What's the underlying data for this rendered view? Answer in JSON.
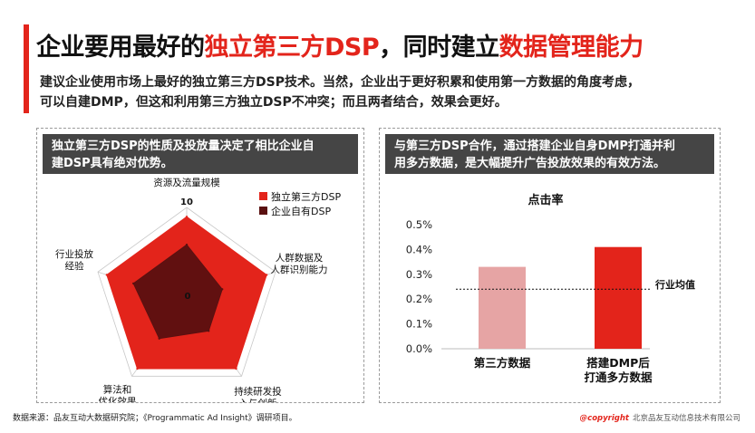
{
  "header": {
    "title_parts": [
      "企业要用最好的",
      "独立第三方DSP",
      "，同时建立",
      "数据管理能力"
    ],
    "subtitle_line1": "建议企业使用市场上最好的独立第三方DSP技术。当然，企业出于更好积累和使用第一方数据的角度考虑，",
    "subtitle_line2": "可以自建DMP，但这和利用第三方独立DSP不冲突；而且两者结合，效果会更好。"
  },
  "left_panel": {
    "heading_line1": "独立第三方DSP的性质及投放量决定了相比企业自",
    "heading_line2": "建DSP具有绝对优势。"
  },
  "right_panel": {
    "heading_line1": "与第三方DSP合作，通过搭建企业自身DMP打通并利",
    "heading_line2": "用多方数据，是大幅提升广告投放效果的有效方法。"
  },
  "chart_data": [
    {
      "type": "radar",
      "axes": [
        {
          "label_lines": [
            "资源及流量规模"
          ]
        },
        {
          "label_lines": [
            "人群数据及",
            "人群识别能力"
          ]
        },
        {
          "label_lines": [
            "持续研发投",
            "入与创新"
          ]
        },
        {
          "label_lines": [
            "算法和",
            "优化效果"
          ]
        },
        {
          "label_lines": [
            "行业投放",
            "经验"
          ]
        }
      ],
      "scale_labels": [
        "10",
        "0"
      ],
      "range": [
        0,
        10
      ],
      "series": [
        {
          "name": "独立第三方DSP",
          "color": "#e3241b",
          "values": [
            9,
            9,
            9,
            9,
            9
          ]
        },
        {
          "name": "企业自有DSP",
          "color": "#5a1010",
          "values": [
            6,
            4,
            4,
            5,
            6
          ]
        }
      ],
      "legend_position": "top-right"
    },
    {
      "type": "bar",
      "title": "点击率",
      "categories": [
        {
          "label_lines": [
            "第三方数据"
          ]
        },
        {
          "label_lines": [
            "搭建DMP后",
            "打通多方数据"
          ]
        }
      ],
      "values": [
        0.33,
        0.41
      ],
      "colors": [
        "#e6a4a4",
        "#e3241b"
      ],
      "ylim": [
        0,
        0.5
      ],
      "yticks": [
        "0.0%",
        "0.1%",
        "0.2%",
        "0.3%",
        "0.4%",
        "0.5%"
      ],
      "reference_line": {
        "value": 0.24,
        "label": "行业均值"
      }
    }
  ],
  "footer": {
    "source": "数据来源：品友互动大数据研究院；《Programmatic Ad Insight》调研项目。",
    "copyright_mark": "@copyright",
    "copyright_text": "北京品友互动信息技术有限公司"
  }
}
